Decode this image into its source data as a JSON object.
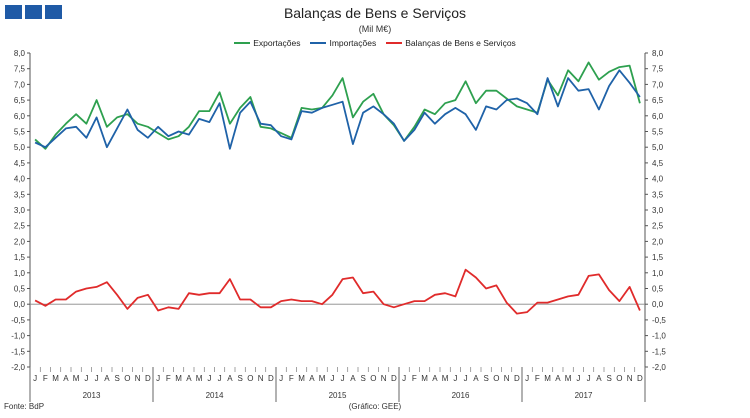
{
  "logo": {
    "icon": "three-blue-squares-logo",
    "color": "#1f5aa6"
  },
  "chart_data": {
    "type": "line",
    "title": "Balanças de Bens e Serviços",
    "subtitle": "(Mil M€)",
    "ylim": [
      -2.0,
      8.0
    ],
    "ytick_step": 0.5,
    "ytick_labels": [
      "8,0",
      "7,5",
      "7,0",
      "6,5",
      "6,0",
      "5,5",
      "5,0",
      "4,5",
      "4,0",
      "3,5",
      "3,0",
      "2,5",
      "2,0",
      "1,5",
      "1,0",
      "0,5",
      "0,0",
      "-0,5",
      "-1,0",
      "-1,5",
      "-2,0"
    ],
    "month_labels": [
      "J",
      "F",
      "M",
      "A",
      "M",
      "J",
      "J",
      "A",
      "S",
      "O",
      "N",
      "D"
    ],
    "years": [
      "2013",
      "2014",
      "2015",
      "2016",
      "2017"
    ],
    "series": [
      {
        "name": "Exportações",
        "color": "#2ea04f",
        "values": [
          5.25,
          4.95,
          5.4,
          5.75,
          6.05,
          5.75,
          6.5,
          5.65,
          5.95,
          6.05,
          5.75,
          5.65,
          5.45,
          5.25,
          5.35,
          5.65,
          6.15,
          6.15,
          6.75,
          5.75,
          6.25,
          6.6,
          5.65,
          5.6,
          5.45,
          5.3,
          6.25,
          6.2,
          6.25,
          6.65,
          7.2,
          5.95,
          6.45,
          6.7,
          6.05,
          5.7,
          5.2,
          5.65,
          6.2,
          6.05,
          6.4,
          6.5,
          7.1,
          6.4,
          6.8,
          6.8,
          6.55,
          6.3,
          6.2,
          6.1,
          7.15,
          6.65,
          7.45,
          7.1,
          7.7,
          7.15,
          7.4,
          7.55,
          7.6,
          6.4
        ]
      },
      {
        "name": "Importações",
        "color": "#1f62a8",
        "values": [
          5.15,
          5.0,
          5.3,
          5.6,
          5.65,
          5.3,
          5.95,
          5.0,
          5.6,
          6.2,
          5.55,
          5.3,
          5.65,
          5.35,
          5.5,
          5.4,
          5.9,
          5.8,
          6.4,
          4.95,
          6.1,
          6.45,
          5.75,
          5.7,
          5.35,
          5.25,
          6.15,
          6.1,
          6.25,
          6.35,
          6.45,
          5.1,
          6.1,
          6.3,
          6.05,
          5.75,
          5.2,
          5.55,
          6.1,
          5.75,
          6.05,
          6.25,
          6.05,
          5.55,
          6.3,
          6.2,
          6.5,
          6.55,
          6.4,
          6.05,
          7.2,
          6.3,
          7.2,
          6.8,
          6.85,
          6.2,
          6.95,
          7.45,
          7.05,
          6.6
        ]
      },
      {
        "name": "Balanças de Bens e Serviços",
        "color": "#e02b2b",
        "values": [
          0.12,
          -0.05,
          0.15,
          0.15,
          0.4,
          0.5,
          0.55,
          0.7,
          0.3,
          -0.15,
          0.2,
          0.3,
          -0.2,
          -0.1,
          -0.15,
          0.35,
          0.3,
          0.35,
          0.35,
          0.8,
          0.15,
          0.15,
          -0.1,
          -0.1,
          0.1,
          0.15,
          0.1,
          0.1,
          0.0,
          0.3,
          0.8,
          0.85,
          0.35,
          0.4,
          0.0,
          -0.1,
          0.0,
          0.1,
          0.1,
          0.3,
          0.35,
          0.25,
          1.1,
          0.85,
          0.5,
          0.6,
          0.05,
          -0.3,
          -0.25,
          0.05,
          0.05,
          0.15,
          0.25,
          0.3,
          0.9,
          0.95,
          0.45,
          0.1,
          0.55,
          -0.2
        ]
      }
    ]
  },
  "footer": {
    "source": "Fonte: BdP",
    "credit": "(Gráfico: GEE)"
  }
}
